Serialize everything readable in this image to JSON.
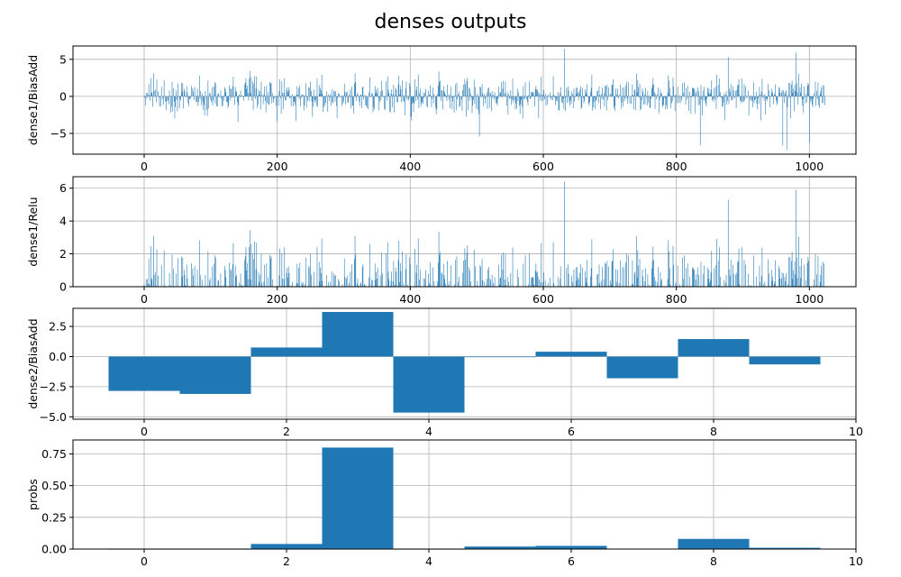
{
  "figure": {
    "title": "denses outputs"
  },
  "chart_data": [
    {
      "type": "bar",
      "ylabel": "dense1/BiasAdd",
      "xlim": [
        -107,
        1070
      ],
      "ylim": [
        -7.8,
        6.8
      ],
      "xticks": [
        0,
        200,
        400,
        600,
        800,
        1000
      ],
      "yticks": [
        -5,
        0,
        5
      ],
      "ytick_labels": [
        "−5",
        "0",
        "5"
      ],
      "n": 1024,
      "bar_color": "#1f77b4",
      "grid": true,
      "values_note": "1024 dense1 pre-activation values, approx. range −7.2 to 6.4",
      "notable_points": [
        [
          632,
          6.4
        ],
        [
          878,
          5.3
        ],
        [
          980,
          5.9
        ],
        [
          966,
          -7.2
        ],
        [
          960,
          -6.6
        ],
        [
          836,
          -6.6
        ],
        [
          1000,
          -6.3
        ],
        [
          504,
          -5.4
        ]
      ]
    },
    {
      "type": "bar",
      "ylabel": "dense1/Relu",
      "xlim": [
        -107,
        1070
      ],
      "ylim": [
        0,
        6.7
      ],
      "xticks": [
        0,
        200,
        400,
        600,
        800,
        1000
      ],
      "yticks": [
        0,
        2,
        4,
        6
      ],
      "ytick_labels": [
        "0",
        "2",
        "4",
        "6"
      ],
      "n": 1024,
      "bar_color": "#1f77b4",
      "grid": true,
      "values_note": "ReLU of dense1/BiasAdd (negative values clipped to 0)"
    },
    {
      "type": "bar",
      "ylabel": "dense2/BiasAdd",
      "xlim": [
        -1,
        10
      ],
      "ylim": [
        -5.2,
        4.0
      ],
      "xticks": [
        0,
        2,
        4,
        6,
        8,
        10
      ],
      "yticks": [
        -5.0,
        -2.5,
        0.0,
        2.5
      ],
      "ytick_labels": [
        "−5.0",
        "−2.5",
        "0.0",
        "2.5"
      ],
      "categories": [
        0,
        1,
        2,
        3,
        4,
        5,
        6,
        7,
        8,
        9
      ],
      "values": [
        -2.85,
        -3.1,
        0.75,
        3.7,
        -4.65,
        -0.05,
        0.4,
        -1.8,
        1.45,
        -0.65
      ],
      "bar_color": "#1f77b4",
      "grid": true
    },
    {
      "type": "bar",
      "ylabel": "probs",
      "xlim": [
        -1,
        10
      ],
      "ylim": [
        0,
        0.86
      ],
      "xticks": [
        0,
        2,
        4,
        6,
        8,
        10
      ],
      "yticks": [
        0.0,
        0.25,
        0.5,
        0.75
      ],
      "ytick_labels": [
        "0.00",
        "0.25",
        "0.50",
        "0.75"
      ],
      "categories": [
        0,
        1,
        2,
        3,
        4,
        5,
        6,
        7,
        8,
        9
      ],
      "values": [
        0.0,
        0.0,
        0.04,
        0.8,
        0.0,
        0.02,
        0.025,
        0.003,
        0.08,
        0.01
      ],
      "bar_color": "#1f77b4",
      "grid": true
    }
  ]
}
